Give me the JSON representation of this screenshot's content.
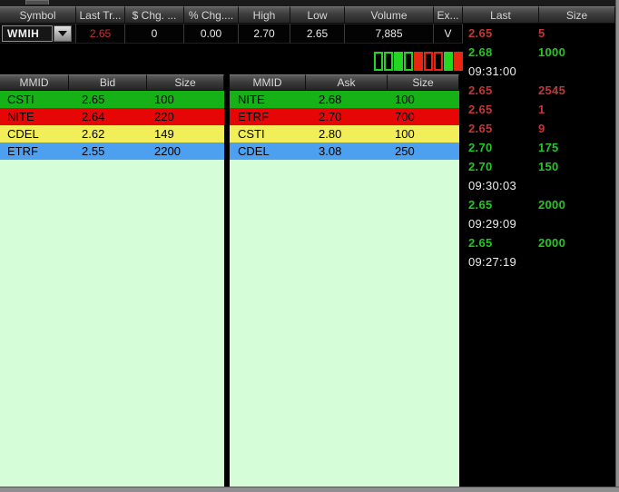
{
  "quote_bar": {
    "columns": [
      {
        "label": "Symbol"
      },
      {
        "label": "Last Tr..."
      },
      {
        "label": "$ Chg. ..."
      },
      {
        "label": "% Chg...."
      },
      {
        "label": "High"
      },
      {
        "label": "Low"
      },
      {
        "label": "Volume"
      },
      {
        "label": "Ex..."
      }
    ],
    "symbol": "WMIH",
    "last_trade": "2.65",
    "dollar_change": "0",
    "percent_change": "0.00",
    "high": "2.70",
    "low": "2.65",
    "volume": "7,885",
    "exchange": "V"
  },
  "trend_blocks": [
    {
      "color": "green",
      "filled": false
    },
    {
      "color": "green",
      "filled": false
    },
    {
      "color": "green",
      "filled": true
    },
    {
      "color": "green",
      "filled": false
    },
    {
      "color": "red",
      "filled": true
    },
    {
      "color": "red",
      "filled": false
    },
    {
      "color": "red",
      "filled": false
    },
    {
      "color": "green",
      "filled": true
    },
    {
      "color": "red",
      "filled": true
    }
  ],
  "bid_book": {
    "headers": [
      "MMID",
      "Bid",
      "Size"
    ],
    "rows": [
      {
        "mmid": "CSTI",
        "price": "2.65",
        "size": "100",
        "color": "green"
      },
      {
        "mmid": "NITE",
        "price": "2.64",
        "size": "220",
        "color": "red"
      },
      {
        "mmid": "CDEL",
        "price": "2.62",
        "size": "149",
        "color": "yellow"
      },
      {
        "mmid": "ETRF",
        "price": "2.55",
        "size": "2200",
        "color": "blue"
      }
    ]
  },
  "ask_book": {
    "headers": [
      "MMID",
      "Ask",
      "Size"
    ],
    "rows": [
      {
        "mmid": "NITE",
        "price": "2.68",
        "size": "100",
        "color": "green"
      },
      {
        "mmid": "ETRF",
        "price": "2.70",
        "size": "700",
        "color": "red"
      },
      {
        "mmid": "CSTI",
        "price": "2.80",
        "size": "100",
        "color": "yellow"
      },
      {
        "mmid": "CDEL",
        "price": "3.08",
        "size": "250",
        "color": "blue"
      }
    ]
  },
  "time_sales": {
    "headers": [
      "Last",
      "Size"
    ],
    "rows": [
      {
        "type": "trade",
        "price": "2.65",
        "size": "5",
        "color": "red"
      },
      {
        "type": "trade",
        "price": "2.68",
        "size": "1000",
        "color": "green"
      },
      {
        "type": "time",
        "time": "09:31:00"
      },
      {
        "type": "trade",
        "price": "2.65",
        "size": "2545",
        "color": "red"
      },
      {
        "type": "trade",
        "price": "2.65",
        "size": "1",
        "color": "red"
      },
      {
        "type": "trade",
        "price": "2.65",
        "size": "9",
        "color": "red"
      },
      {
        "type": "trade",
        "price": "2.70",
        "size": "175",
        "color": "green"
      },
      {
        "type": "trade",
        "price": "2.70",
        "size": "150",
        "color": "green"
      },
      {
        "type": "time",
        "time": "09:30:03"
      },
      {
        "type": "trade",
        "price": "2.65",
        "size": "2000",
        "color": "green"
      },
      {
        "type": "time",
        "time": "09:29:09"
      },
      {
        "type": "trade",
        "price": "2.65",
        "size": "2000",
        "color": "green"
      },
      {
        "type": "time",
        "time": "09:27:19"
      }
    ]
  },
  "colors": {
    "levels": {
      "green": "#16b116",
      "red": "#e60606",
      "yellow": "#f2ee5a",
      "blue": "#4d9ff0"
    },
    "ts": {
      "red": "#c23737",
      "green": "#25c525",
      "time": "#ececec"
    },
    "trend": {
      "green": "#22d622",
      "red": "#ea2512"
    },
    "last_trade_red": "#c23535",
    "book_background": "#d5fdd7"
  }
}
